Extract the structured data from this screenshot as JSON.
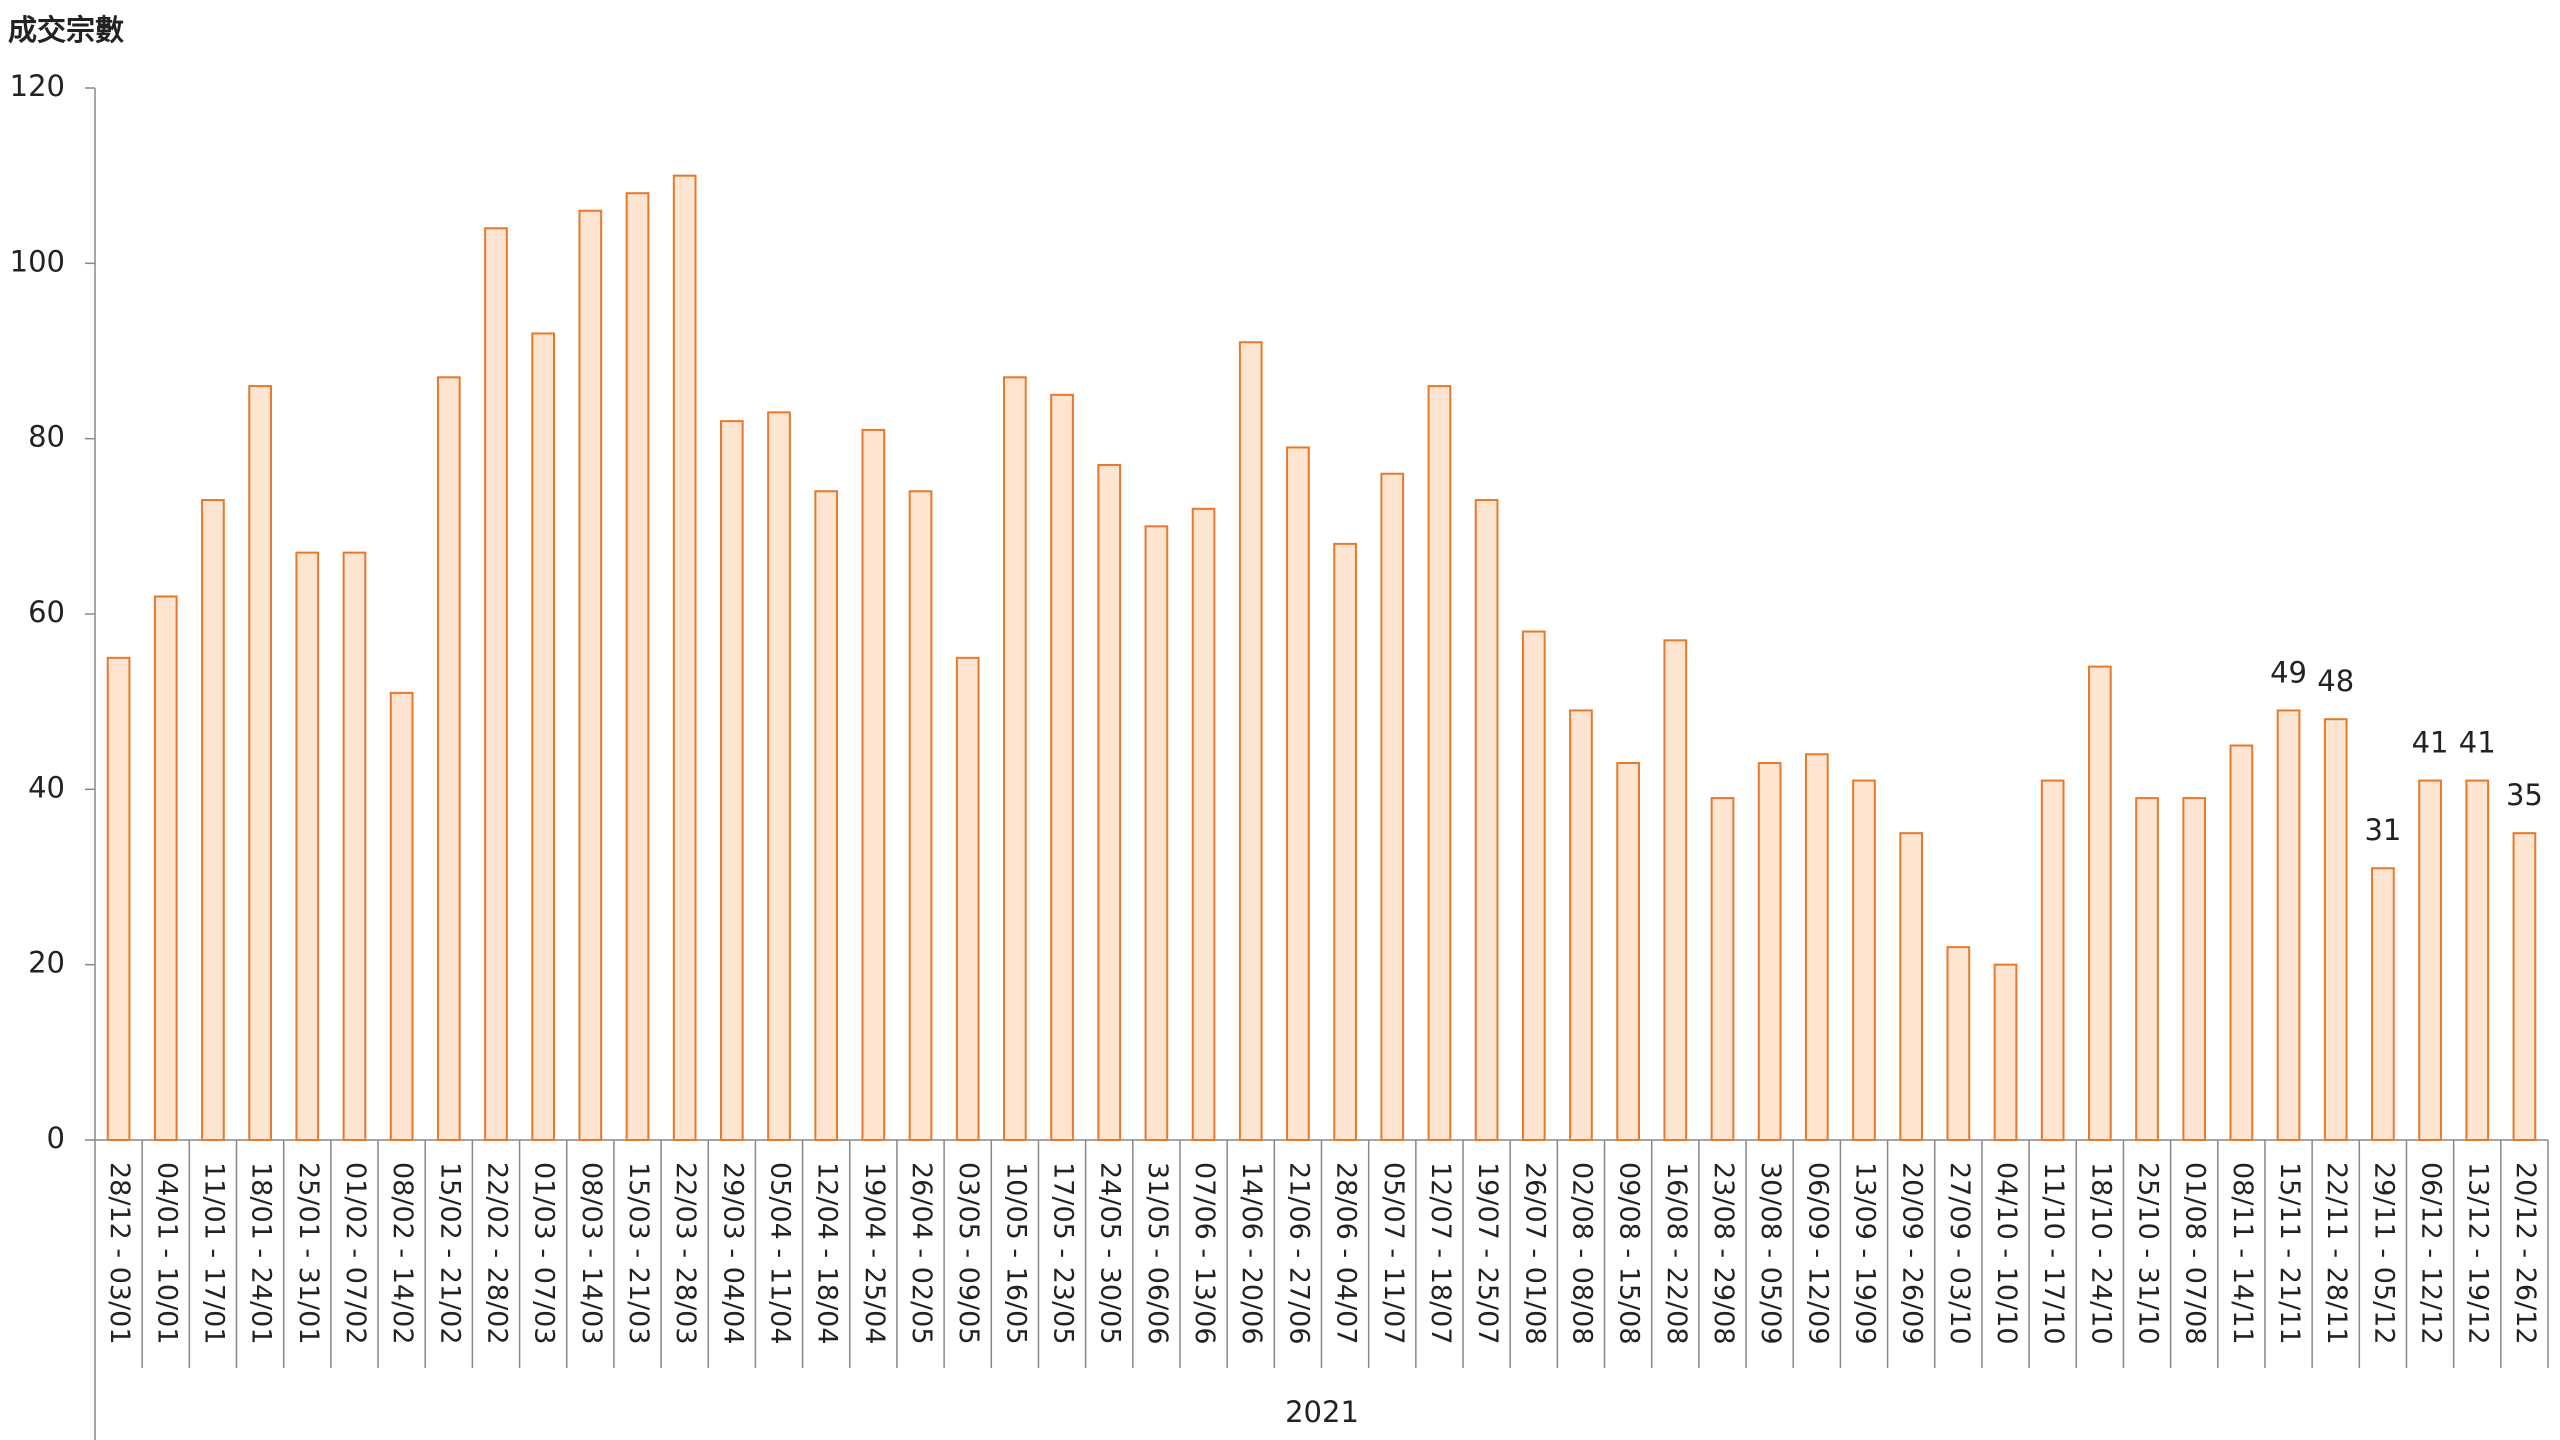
{
  "chart_data": {
    "type": "bar",
    "y_label": "成交宗數",
    "x_group_label": "2021",
    "categories": [
      "28/12 - 03/01",
      "04/01 - 10/01",
      "11/01 - 17/01",
      "18/01 - 24/01",
      "25/01 - 31/01",
      "01/02 - 07/02",
      "08/02 - 14/02",
      "15/02 - 21/02",
      "22/02 - 28/02",
      "01/03 - 07/03",
      "08/03 - 14/03",
      "15/03 - 21/03",
      "22/03 - 28/03",
      "29/03 - 04/04",
      "05/04 - 11/04",
      "12/04 - 18/04",
      "19/04 - 25/04",
      "26/04 - 02/05",
      "03/05 - 09/05",
      "10/05 - 16/05",
      "17/05 - 23/05",
      "24/05 - 30/05",
      "31/05 - 06/06",
      "07/06 - 13/06",
      "14/06 - 20/06",
      "21/06 - 27/06",
      "28/06 - 04/07",
      "05/07 - 11/07",
      "12/07 - 18/07",
      "19/07 - 25/07",
      "26/07 - 01/08",
      "02/08 - 08/08",
      "09/08 - 15/08",
      "16/08 - 22/08",
      "23/08 - 29/08",
      "30/08 - 05/09",
      "06/09 - 12/09",
      "13/09 - 19/09",
      "20/09 - 26/09",
      "27/09 - 03/10",
      "04/10 - 10/10",
      "11/10 - 17/10",
      "18/10 - 24/10",
      "25/10 - 31/10",
      "01/08 - 07/08",
      "08/11 - 14/11",
      "15/11 - 21/11",
      "22/11 - 28/11",
      "29/11 - 05/12",
      "06/12 - 12/12",
      "13/12 - 19/12",
      "20/12 - 26/12"
    ],
    "values": [
      55,
      62,
      73,
      86,
      67,
      67,
      51,
      87,
      104,
      92,
      106,
      108,
      110,
      82,
      83,
      74,
      81,
      74,
      55,
      87,
      85,
      77,
      70,
      72,
      91,
      79,
      68,
      76,
      86,
      73,
      58,
      49,
      43,
      57,
      39,
      43,
      44,
      41,
      35,
      22,
      20,
      41,
      54,
      39,
      39,
      45,
      49,
      48,
      31,
      41,
      41,
      35
    ],
    "value_labels": [
      null,
      null,
      null,
      null,
      null,
      null,
      null,
      null,
      null,
      null,
      null,
      null,
      null,
      null,
      null,
      null,
      null,
      null,
      null,
      null,
      null,
      null,
      null,
      null,
      null,
      null,
      null,
      null,
      null,
      null,
      null,
      null,
      null,
      null,
      null,
      null,
      null,
      null,
      null,
      null,
      null,
      null,
      null,
      null,
      null,
      null,
      "49",
      "48",
      "31",
      "41",
      "41",
      "35"
    ],
    "color": "#fde5d2",
    "edge_color": "#e8792a",
    "ylim": [
      0,
      120
    ],
    "yticks": [
      0,
      20,
      40,
      60,
      80,
      100,
      120
    ],
    "grid": false
  }
}
